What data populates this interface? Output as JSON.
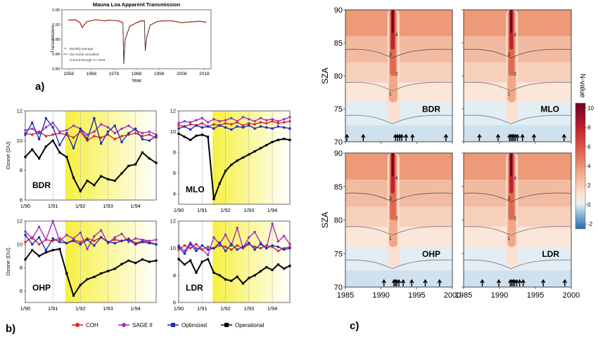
{
  "panel_labels": {
    "a": "a)",
    "b": "b)",
    "c": "c)"
  },
  "chart_data": [
    {
      "id": "a",
      "type": "line",
      "title": "Mauna Loa Apparent Transmission",
      "xlabel": "Year",
      "ylabel": "Transmission",
      "xlim": [
        1955,
        2021
      ],
      "ylim": [
        0.8,
        0.96
      ],
      "xticks": [
        "1958",
        "1968",
        "1978",
        "1988",
        "1998",
        "2008",
        "2018"
      ],
      "yticks": [
        "0.80",
        "0.84",
        "0.88",
        "0.92",
        "0.96"
      ],
      "legend": [
        "Monthly average",
        "Six-month smoothed",
        "Current through: 9 / 2019"
      ],
      "series": [
        {
          "name": "Monthly average",
          "x": [
            1958,
            1961,
            1963,
            1964,
            1966,
            1970,
            1974,
            1976,
            1980,
            1982,
            1982.4,
            1983,
            1985,
            1988,
            1990,
            1991.5,
            1991.9,
            1992.5,
            1994,
            1997,
            2000,
            2004,
            2008,
            2011,
            2014,
            2016,
            2019
          ],
          "values": [
            0.932,
            0.933,
            0.925,
            0.912,
            0.928,
            0.933,
            0.93,
            0.932,
            0.93,
            0.925,
            0.815,
            0.88,
            0.915,
            0.925,
            0.93,
            0.93,
            0.85,
            0.885,
            0.918,
            0.928,
            0.93,
            0.93,
            0.925,
            0.927,
            0.928,
            0.929,
            0.926
          ]
        }
      ]
    },
    {
      "id": "b",
      "type": "line",
      "xticks": [
        "1/90",
        "1/91",
        "1/92",
        "1/93",
        "1/94"
      ],
      "xlim": [
        1990,
        1994.75
      ],
      "legend": [
        "COH",
        "SAGE II",
        "Optimized",
        "Operational"
      ],
      "colors": {
        "COH": "#e02020",
        "SAGE II": "#9b30c0",
        "Optimized": "#1c2fb8",
        "Operational": "#000000",
        "highlight": "#f6f040"
      },
      "highlight_start": 1991.45,
      "panels": [
        {
          "station": "BDR",
          "ylabel": "Ozone (DU)",
          "ylim": [
            6,
            12
          ],
          "yticks": [
            "6",
            "8",
            "10",
            "12"
          ],
          "x": [
            1990,
            1990.25,
            1990.5,
            1990.75,
            1991,
            1991.25,
            1991.5,
            1991.75,
            1992,
            1992.25,
            1992.5,
            1992.75,
            1993,
            1993.25,
            1993.5,
            1993.75,
            1994,
            1994.25,
            1994.5,
            1994.75
          ],
          "series": [
            {
              "name": "COH",
              "values": [
                10.5,
                10.4,
                10.6,
                10.3,
                10.4,
                10.5,
                10.4,
                10.2,
                10.6,
                10.0,
                10.3,
                10.2,
                10.4,
                10.1,
                10.3,
                10.4,
                10.5,
                10.3,
                10.4,
                10.2
              ]
            },
            {
              "name": "SAGE II",
              "values": [
                10.7,
                10.8,
                10.5,
                10.9,
                11.2,
                10.6,
                10.7,
                11.0,
                10.8,
                10.4,
                10.6,
                11.1,
                10.9,
                10.5,
                10.8,
                11.0,
                10.7,
                10.5,
                10.6,
                10.4
              ]
            },
            {
              "name": "Optimized",
              "values": [
                10.4,
                11.2,
                10.1,
                11.5,
                10.9,
                9.7,
                10.5,
                9.5,
                10.8,
                10.1,
                11.5,
                9.8,
                10.6,
                11.0,
                9.9,
                10.5,
                10.8,
                10.1,
                10.0,
                10.3
              ]
            },
            {
              "name": "Operational",
              "values": [
                8.9,
                9.4,
                8.8,
                9.6,
                10.0,
                9.2,
                8.9,
                7.5,
                6.6,
                7.3,
                7.0,
                7.6,
                7.4,
                7.3,
                7.8,
                8.3,
                8.4,
                9.2,
                8.8,
                8.5
              ]
            }
          ]
        },
        {
          "station": "MLO",
          "ylabel": "",
          "ylim": [
            3,
            12
          ],
          "yticks": [
            "4",
            "6",
            "8",
            "10",
            "12"
          ],
          "x": [
            1990,
            1990.25,
            1990.5,
            1990.75,
            1991,
            1991.25,
            1991.5,
            1991.75,
            1992,
            1992.25,
            1992.5,
            1992.75,
            1993,
            1993.25,
            1993.5,
            1993.75,
            1994,
            1994.25,
            1994.5,
            1994.75
          ],
          "series": [
            {
              "name": "COH",
              "values": [
                10.6,
                10.5,
                10.7,
                10.6,
                10.8,
                10.5,
                10.7,
                10.6,
                10.8,
                10.7,
                10.9,
                10.6,
                10.8,
                10.7,
                10.9,
                10.8,
                11.0,
                10.8,
                10.9,
                11.0
              ]
            },
            {
              "name": "SAGE II",
              "values": [
                10.8,
                11.0,
                10.9,
                11.1,
                11.3,
                10.9,
                11.2,
                11.0,
                11.1,
                11.3,
                11.0,
                11.4,
                11.2,
                11.0,
                11.3,
                11.1,
                11.2,
                11.0,
                11.2,
                11.4
              ]
            },
            {
              "name": "Optimized",
              "values": [
                10.3,
                10.5,
                10.2,
                10.6,
                10.4,
                10.5,
                10.3,
                10.6,
                10.4,
                10.2,
                10.5,
                10.4,
                10.6,
                10.3,
                10.5,
                10.4,
                10.3,
                10.5,
                10.4,
                10.3
              ]
            },
            {
              "name": "Operational",
              "values": [
                9.8,
                9.5,
                9.2,
                9.6,
                9.7,
                9.5,
                3.5,
                5.0,
                6.2,
                6.8,
                7.2,
                7.5,
                7.8,
                8.1,
                8.4,
                8.7,
                9.0,
                9.2,
                9.3,
                9.2
              ]
            }
          ]
        },
        {
          "station": "OHP",
          "ylabel": "Ozone (DU)",
          "ylim": [
            5,
            12
          ],
          "yticks": [
            "6",
            "8",
            "10",
            "12"
          ],
          "x": [
            1990,
            1990.25,
            1990.5,
            1990.75,
            1991,
            1991.25,
            1991.5,
            1991.75,
            1992,
            1992.25,
            1992.5,
            1992.75,
            1993,
            1993.25,
            1993.5,
            1993.75,
            1994,
            1994.25,
            1994.5,
            1994.75
          ],
          "series": [
            {
              "name": "COH",
              "values": [
                10.2,
                10.6,
                10.0,
                10.4,
                10.3,
                10.5,
                10.1,
                10.4,
                10.2,
                10.5,
                10.3,
                10.6,
                10.2,
                10.4,
                10.3,
                10.5,
                10.1,
                10.3,
                10.2,
                10.0
              ]
            },
            {
              "name": "SAGE II",
              "values": [
                11.1,
                10.5,
                11.5,
                10.4,
                12.0,
                10.3,
                10.8,
                10.5,
                11.0,
                9.6,
                10.7,
                11.2,
                10.1,
                10.6,
                10.9,
                10.2,
                10.5,
                10.4,
                10.3,
                10.4
              ]
            },
            {
              "name": "Optimized",
              "values": [
                10.8,
                10.0,
                10.6,
                9.5,
                10.5,
                10.2,
                10.1,
                10.3,
                10.0,
                10.4,
                9.9,
                10.6,
                10.2,
                10.1,
                10.3,
                10.4,
                10.0,
                10.2,
                10.1,
                10.0
              ]
            },
            {
              "name": "Operational",
              "values": [
                8.7,
                9.5,
                9.0,
                9.3,
                9.5,
                9.6,
                7.5,
                5.6,
                6.5,
                7.0,
                7.2,
                7.5,
                7.7,
                7.9,
                8.3,
                8.6,
                8.4,
                8.7,
                8.5,
                8.6
              ]
            }
          ]
        },
        {
          "station": "LDR",
          "ylabel": "",
          "ylim": [
            6,
            12
          ],
          "yticks": [
            "6",
            "8",
            "10",
            "12"
          ],
          "x": [
            1990,
            1990.25,
            1990.5,
            1990.75,
            1991,
            1991.25,
            1991.5,
            1991.75,
            1992,
            1992.25,
            1992.5,
            1992.75,
            1993,
            1993.25,
            1993.5,
            1993.75,
            1994,
            1994.25,
            1994.5,
            1994.75
          ],
          "series": [
            {
              "name": "COH",
              "values": [
                9.9,
                10.2,
                10.0,
                10.3,
                9.9,
                10.1,
                10.0,
                10.2,
                10.1,
                9.9,
                10.2,
                10.0,
                10.3,
                10.1,
                10.0,
                10.2,
                10.1,
                9.8,
                10.0,
                10.1
              ]
            },
            {
              "name": "SAGE II",
              "values": [
                10.2,
                9.8,
                10.4,
                10.0,
                9.9,
                9.5,
                10.8,
                10.3,
                11.0,
                10.2,
                11.5,
                10.0,
                10.8,
                11.2,
                10.4,
                10.0,
                11.8,
                10.5,
                10.9,
                10.3
              ]
            },
            {
              "name": "Optimized",
              "values": [
                10.1,
                9.6,
                10.3,
                9.8,
                10.2,
                9.9,
                10.0,
                10.4,
                9.8,
                10.3,
                9.9,
                10.1,
                10.4,
                9.9,
                10.3,
                10.0,
                10.2,
                10.1,
                9.9,
                10.0
              ]
            },
            {
              "name": "Operational",
              "values": [
                9.2,
                8.8,
                9.1,
                8.2,
                9.0,
                9.2,
                8.2,
                8.0,
                7.7,
                7.6,
                7.9,
                7.4,
                7.8,
                8.0,
                8.3,
                8.6,
                8.4,
                8.8,
                8.5,
                8.7
              ]
            }
          ]
        }
      ]
    },
    {
      "id": "c",
      "type": "heatmap",
      "ylabel": "SZA",
      "xlim": [
        1985,
        2000
      ],
      "ylim": [
        70,
        90
      ],
      "xticks": [
        "1985",
        "1990",
        "1995",
        "2000"
      ],
      "yticks": [
        "70",
        "75",
        "80",
        "85",
        "90"
      ],
      "colorbar_label": "N-value",
      "colorbar_ticks": [
        "-2",
        "0",
        "2",
        "4",
        "6",
        "8",
        "10"
      ],
      "colorbar_range": [
        -2.5,
        10.5
      ],
      "eruption_year": 1991.6,
      "contour_labels": [
        "1",
        "2",
        "3",
        "4"
      ],
      "panels": [
        {
          "station": "BDR",
          "arrows": [
            1985.2,
            1987.5,
            1992,
            1992.3,
            1992.6,
            1992.9,
            1993.5,
            1994.4,
            1999.1
          ]
        },
        {
          "station": "MLO",
          "arrows": [
            1987.2,
            1989.8,
            1991.4,
            1991.6,
            1991.8,
            1992.0,
            1992.2,
            1992.5,
            1993.2,
            1994.8,
            1999.0
          ]
        },
        {
          "station": "OHP",
          "arrows": [
            1990.4,
            1991.8,
            1992.0,
            1992.2,
            1992.5,
            1993.1,
            1994.3,
            1996.2,
            1998.2
          ]
        },
        {
          "station": "LDR",
          "arrows": [
            1987.6,
            1989.9,
            1991.5,
            1991.7,
            1991.9,
            1992.1,
            1992.4,
            1992.8,
            1993.3,
            1996.1,
            1999.1
          ]
        }
      ]
    }
  ]
}
